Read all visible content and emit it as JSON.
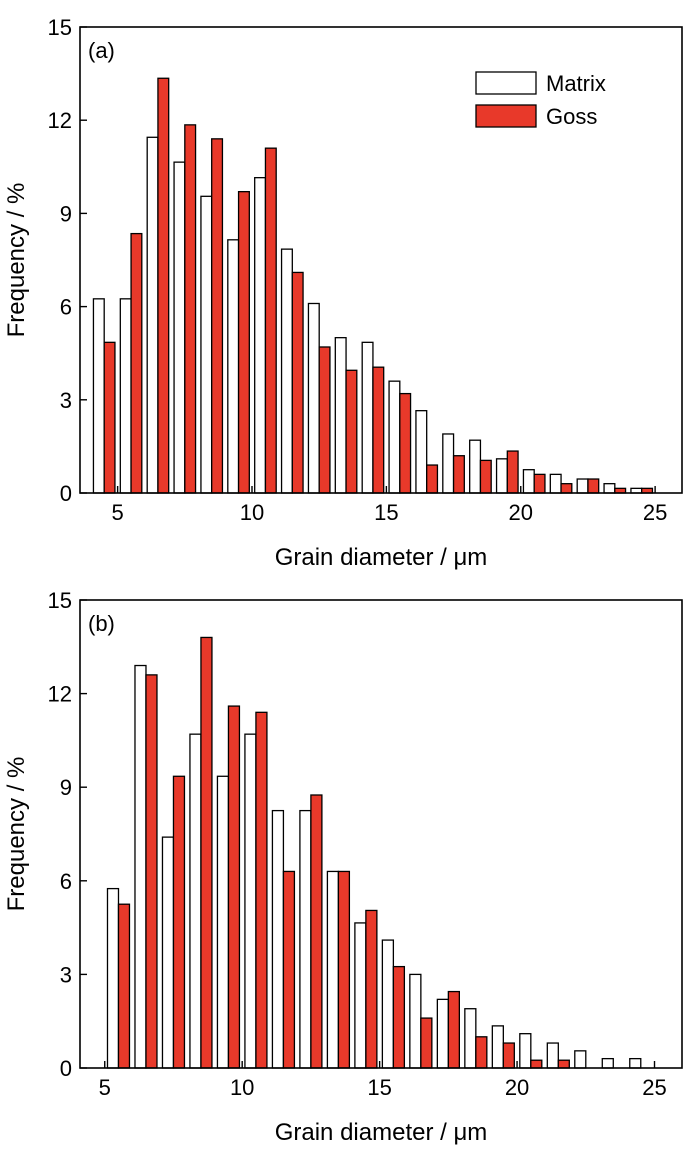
{
  "colors": {
    "matrix_fill": "#ffffff",
    "goss_fill": "#e8392a",
    "stroke": "#000000"
  },
  "chart_data": [
    {
      "type": "bar",
      "panel_label": "(a)",
      "xlabel": "Grain diameter / μm",
      "ylabel": "Frequency / %",
      "xlim": [
        3.6,
        26.0
      ],
      "ylim": [
        0,
        15
      ],
      "xticks": [
        5,
        10,
        15,
        20,
        25
      ],
      "yticks": [
        0,
        3,
        6,
        9,
        12,
        15
      ],
      "grid": false,
      "legend": {
        "position": "top-right",
        "entries": [
          "Matrix",
          "Goss"
        ]
      },
      "x": [
        4.5,
        5.5,
        6.5,
        7.5,
        8.5,
        9.5,
        10.5,
        11.5,
        12.5,
        13.5,
        14.5,
        15.5,
        16.5,
        17.5,
        18.5,
        19.5,
        20.5,
        21.5,
        22.5,
        23.5,
        24.5
      ],
      "series": [
        {
          "name": "Matrix",
          "values": [
            6.25,
            6.25,
            11.45,
            10.65,
            9.55,
            8.15,
            10.15,
            7.85,
            6.1,
            5.0,
            4.85,
            3.6,
            2.65,
            1.9,
            1.7,
            1.1,
            0.75,
            0.6,
            0.45,
            0.3,
            0.15
          ]
        },
        {
          "name": "Goss",
          "values": [
            4.85,
            8.35,
            13.35,
            11.85,
            11.4,
            9.7,
            11.1,
            7.1,
            4.7,
            3.95,
            4.05,
            3.2,
            0.9,
            1.2,
            1.05,
            1.35,
            0.6,
            0.3,
            0.45,
            0.15,
            0.15
          ]
        }
      ]
    },
    {
      "type": "bar",
      "panel_label": "(b)",
      "xlabel": "Grain diameter / μm",
      "ylabel": "Frequency / %",
      "xlim": [
        4.1,
        26.0
      ],
      "ylim": [
        0,
        15
      ],
      "xticks": [
        5,
        10,
        15,
        20,
        25
      ],
      "yticks": [
        0,
        3,
        6,
        9,
        12,
        15
      ],
      "grid": false,
      "legend": null,
      "x": [
        5.5,
        6.5,
        7.5,
        8.5,
        9.5,
        10.5,
        11.5,
        12.5,
        13.5,
        14.5,
        15.5,
        16.5,
        17.5,
        18.5,
        19.5,
        20.5,
        21.5,
        22.5,
        23.5,
        24.5
      ],
      "series": [
        {
          "name": "Matrix",
          "values": [
            5.75,
            12.9,
            7.4,
            10.7,
            9.35,
            10.7,
            8.25,
            8.25,
            6.3,
            4.65,
            4.1,
            3.0,
            2.2,
            1.9,
            1.35,
            1.1,
            0.8,
            0.55,
            0.3,
            0.3
          ]
        },
        {
          "name": "Goss",
          "values": [
            5.25,
            12.6,
            9.35,
            13.8,
            11.6,
            11.4,
            6.3,
            8.75,
            6.3,
            5.05,
            3.25,
            1.6,
            2.45,
            1.0,
            0.8,
            0.25,
            0.25,
            0,
            0,
            0
          ]
        }
      ]
    }
  ]
}
